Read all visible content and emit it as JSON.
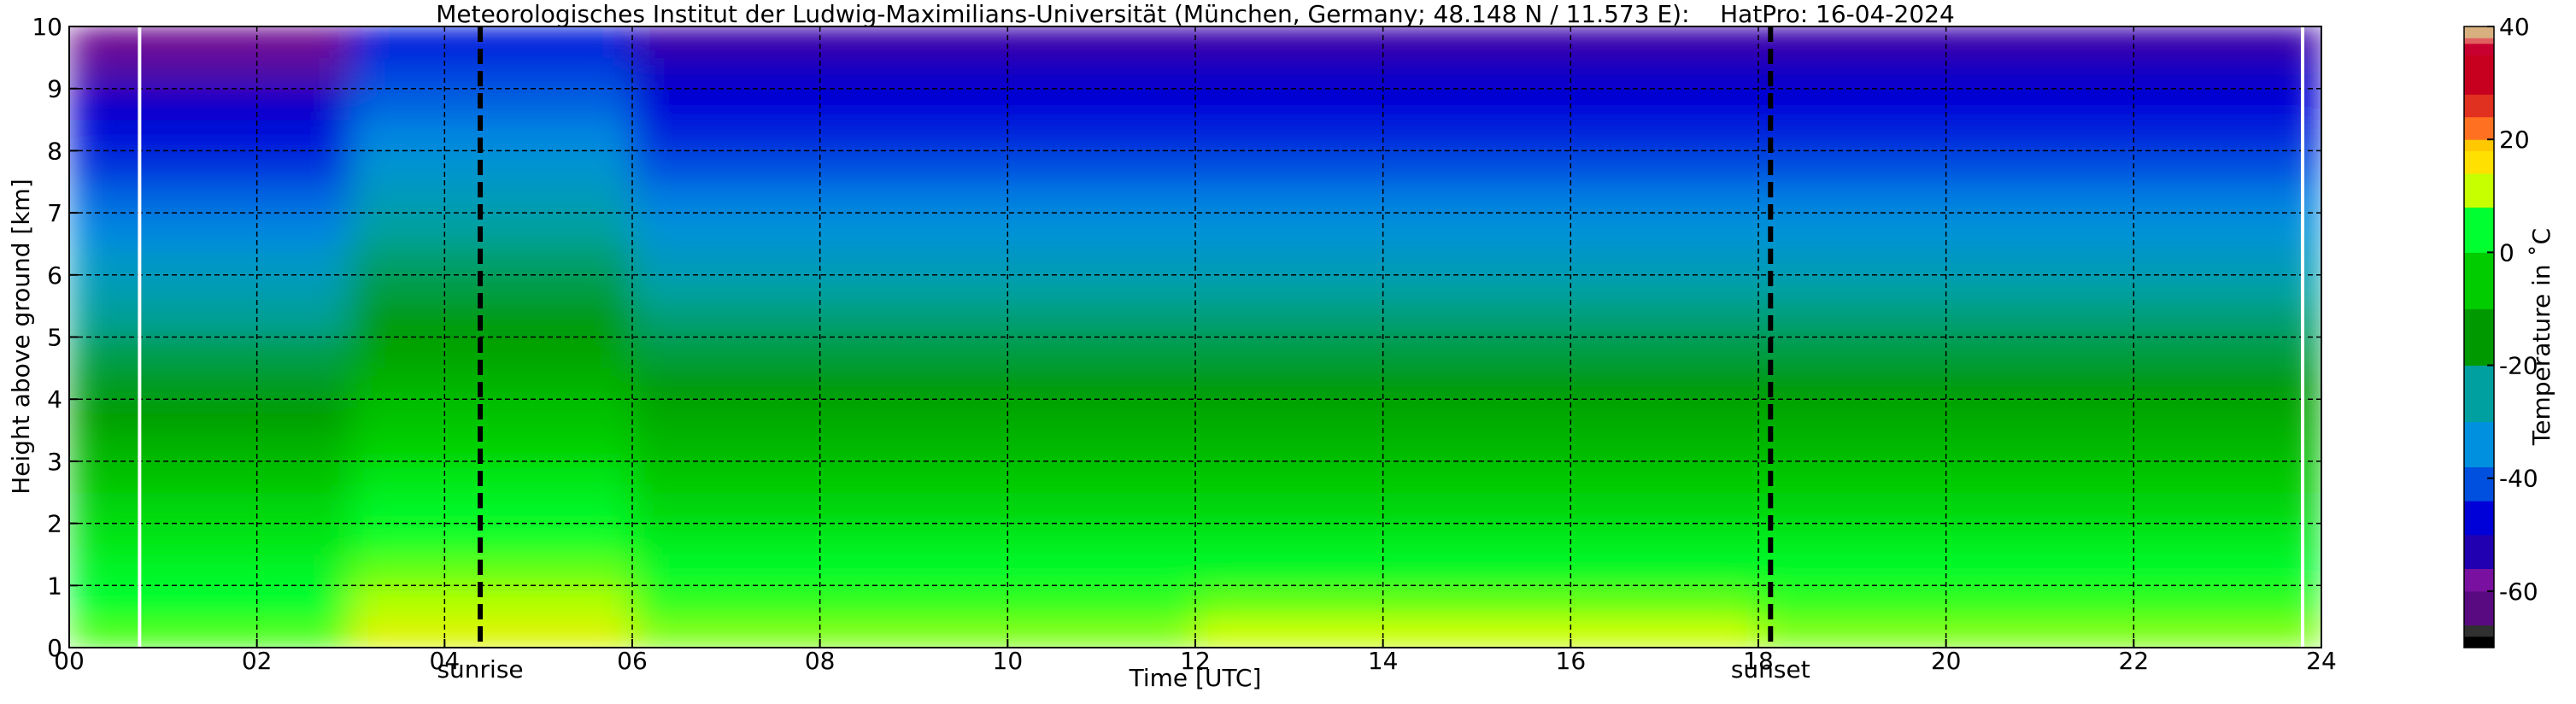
{
  "chart_data": {
    "type": "heatmap",
    "title": "Meteorologisches Institut der Ludwig-Maximilians-Universität (München, Germany; 48.148 N / 11.573 E):    HatPro: 16-04-2024",
    "xlabel": "Time [UTC]",
    "ylabel": "Height above ground [km]",
    "colorbar_label": "Temperature in ˚C",
    "x_edges": [
      0,
      1,
      2,
      3,
      4,
      5,
      6,
      7,
      8,
      9,
      10,
      11,
      12,
      13,
      14,
      15,
      16,
      17,
      18,
      19,
      20,
      21,
      22,
      23,
      24
    ],
    "y_edges": [
      0,
      0.5,
      1,
      1.5,
      2,
      2.5,
      3,
      3.5,
      4,
      4.5,
      5,
      5.5,
      6,
      6.5,
      7,
      7.5,
      8,
      8.5,
      9,
      9.5,
      10
    ],
    "z": [
      [
        3,
        3,
        3,
        10,
        10,
        10,
        5,
        5,
        5,
        5,
        5,
        5,
        8,
        8,
        8,
        8,
        8,
        8,
        5,
        5,
        5,
        5,
        5,
        5
      ],
      [
        0,
        0,
        0,
        7,
        7,
        7,
        2,
        2,
        2,
        2,
        2,
        2,
        4,
        4,
        4,
        4,
        4,
        4,
        2,
        2,
        2,
        2,
        2,
        2
      ],
      [
        -2,
        -2,
        -2,
        4,
        4,
        4,
        -1,
        -1,
        -1,
        -1,
        -1,
        -1,
        -1,
        -1,
        -1,
        -1,
        -1,
        -1,
        -1,
        -1,
        -1,
        -1,
        -1,
        -1
      ],
      [
        -5,
        -5,
        -5,
        1,
        1,
        1,
        -4,
        -4,
        -4,
        -4,
        -4,
        -4,
        -4,
        -4,
        -4,
        -4,
        -4,
        -4,
        -4,
        -4,
        -4,
        -4,
        -4,
        -4
      ],
      [
        -8,
        -8,
        -8,
        -2,
        -2,
        -2,
        -8,
        -8,
        -8,
        -8,
        -8,
        -8,
        -8,
        -8,
        -8,
        -8,
        -8,
        -8,
        -8,
        -8,
        -8,
        -8,
        -8,
        -8
      ],
      [
        -12,
        -12,
        -12,
        -5,
        -5,
        -5,
        -11,
        -11,
        -11,
        -11,
        -11,
        -11,
        -11,
        -11,
        -11,
        -11,
        -11,
        -11,
        -11,
        -11,
        -11,
        -11,
        -11,
        -11
      ],
      [
        -15,
        -15,
        -15,
        -9,
        -9,
        -9,
        -14,
        -14,
        -14,
        -14,
        -14,
        -14,
        -14,
        -14,
        -14,
        -14,
        -14,
        -14,
        -14,
        -14,
        -14,
        -14,
        -14,
        -14
      ],
      [
        -19,
        -19,
        -19,
        -12,
        -12,
        -12,
        -17,
        -17,
        -17,
        -17,
        -17,
        -17,
        -17,
        -17,
        -17,
        -17,
        -17,
        -17,
        -17,
        -17,
        -17,
        -17,
        -17,
        -17
      ],
      [
        -22,
        -22,
        -22,
        -15,
        -15,
        -15,
        -21,
        -21,
        -21,
        -21,
        -21,
        -21,
        -21,
        -21,
        -21,
        -21,
        -21,
        -21,
        -21,
        -21,
        -21,
        -21,
        -21,
        -21
      ],
      [
        -25,
        -25,
        -25,
        -18,
        -18,
        -18,
        -24,
        -24,
        -24,
        -24,
        -24,
        -24,
        -24,
        -24,
        -24,
        -24,
        -24,
        -24,
        -24,
        -24,
        -24,
        -24,
        -24,
        -24
      ],
      [
        -29,
        -29,
        -29,
        -21,
        -21,
        -21,
        -27,
        -27,
        -27,
        -27,
        -27,
        -27,
        -27,
        -27,
        -27,
        -27,
        -27,
        -27,
        -27,
        -27,
        -27,
        -27,
        -27,
        -27
      ],
      [
        -32,
        -32,
        -32,
        -24,
        -24,
        -24,
        -30,
        -30,
        -30,
        -30,
        -30,
        -30,
        -30,
        -30,
        -30,
        -30,
        -30,
        -30,
        -30,
        -30,
        -30,
        -30,
        -30,
        -30
      ],
      [
        -35,
        -35,
        -35,
        -27,
        -27,
        -27,
        -34,
        -34,
        -34,
        -34,
        -34,
        -34,
        -34,
        -34,
        -34,
        -34,
        -34,
        -34,
        -34,
        -34,
        -34,
        -34,
        -34,
        -34
      ],
      [
        -39,
        -39,
        -39,
        -30,
        -30,
        -30,
        -37,
        -37,
        -37,
        -37,
        -37,
        -37,
        -37,
        -37,
        -37,
        -37,
        -37,
        -37,
        -37,
        -37,
        -37,
        -37,
        -37,
        -37
      ],
      [
        -42,
        -42,
        -42,
        -33,
        -33,
        -33,
        -40,
        -40,
        -40,
        -40,
        -40,
        -40,
        -40,
        -40,
        -40,
        -40,
        -40,
        -40,
        -40,
        -40,
        -40,
        -40,
        -40,
        -40
      ],
      [
        -46,
        -46,
        -46,
        -36,
        -36,
        -36,
        -44,
        -44,
        -44,
        -44,
        -44,
        -44,
        -44,
        -44,
        -44,
        -44,
        -44,
        -44,
        -44,
        -44,
        -44,
        -44,
        -44,
        -44
      ],
      [
        -49,
        -49,
        -49,
        -39,
        -39,
        -39,
        -47,
        -47,
        -47,
        -47,
        -47,
        -47,
        -47,
        -47,
        -47,
        -47,
        -47,
        -47,
        -47,
        -47,
        -47,
        -47,
        -47,
        -47
      ],
      [
        -52,
        -52,
        -52,
        -42,
        -42,
        -42,
        -50,
        -50,
        -50,
        -50,
        -50,
        -50,
        -50,
        -50,
        -50,
        -50,
        -50,
        -50,
        -50,
        -50,
        -50,
        -50,
        -50,
        -50
      ],
      [
        -58,
        -58,
        -58,
        -45,
        -45,
        -45,
        -53,
        -53,
        -53,
        -53,
        -53,
        -53,
        -53,
        -53,
        -53,
        -53,
        -53,
        -53,
        -53,
        -53,
        -53,
        -53,
        -53,
        -53
      ],
      [
        -62,
        -62,
        -62,
        -48,
        -48,
        -48,
        -57,
        -57,
        -57,
        -57,
        -57,
        -57,
        -57,
        -57,
        -57,
        -57,
        -57,
        -57,
        -57,
        -57,
        -57,
        -57,
        -57,
        -57
      ]
    ],
    "xlim": [
      0,
      24
    ],
    "xticks": [
      {
        "value": 0,
        "label": "00"
      },
      {
        "value": 2,
        "label": "02"
      },
      {
        "value": 4,
        "label": "04"
      },
      {
        "value": 6,
        "label": "06"
      },
      {
        "value": 8,
        "label": "08"
      },
      {
        "value": 10,
        "label": "10"
      },
      {
        "value": 12,
        "label": "12"
      },
      {
        "value": 14,
        "label": "14"
      },
      {
        "value": 16,
        "label": "16"
      },
      {
        "value": 18,
        "label": "18"
      },
      {
        "value": 20,
        "label": "20"
      },
      {
        "value": 22,
        "label": "22"
      },
      {
        "value": 24,
        "label": "24"
      }
    ],
    "ylim": [
      0,
      10
    ],
    "yticks": [
      0,
      1,
      2,
      3,
      4,
      5,
      6,
      7,
      8,
      9,
      10
    ],
    "clim": [
      -70,
      40
    ],
    "cticks": [
      -60,
      -40,
      -20,
      0,
      20,
      40
    ],
    "colorscale": [
      [
        -70,
        "#000000"
      ],
      [
        -68,
        "#303030"
      ],
      [
        -66,
        "#5a0a80"
      ],
      [
        -60,
        "#7a10a0"
      ],
      [
        -56,
        "#2000b0"
      ],
      [
        -50,
        "#0000d8"
      ],
      [
        -44,
        "#0050e0"
      ],
      [
        -38,
        "#0090e0"
      ],
      [
        -30,
        "#00a0a0"
      ],
      [
        -20,
        "#009a00"
      ],
      [
        -10,
        "#00cc00"
      ],
      [
        0,
        "#00ff30"
      ],
      [
        8,
        "#c8ff00"
      ],
      [
        14,
        "#ffe000"
      ],
      [
        18,
        "#ffc800"
      ],
      [
        20,
        "#ff7020"
      ],
      [
        24,
        "#e03020"
      ],
      [
        28,
        "#c80020"
      ],
      [
        35,
        "#c80030"
      ],
      [
        37,
        "#e06060"
      ],
      [
        38,
        "#d8b080"
      ],
      [
        40,
        "#d8d8b8"
      ]
    ],
    "grid": true,
    "white_lines": [
      0.75,
      23.8
    ],
    "annotations": [
      {
        "x": 4.38,
        "text": "sunrise"
      },
      {
        "x": 18.13,
        "text": "sunset"
      }
    ]
  }
}
